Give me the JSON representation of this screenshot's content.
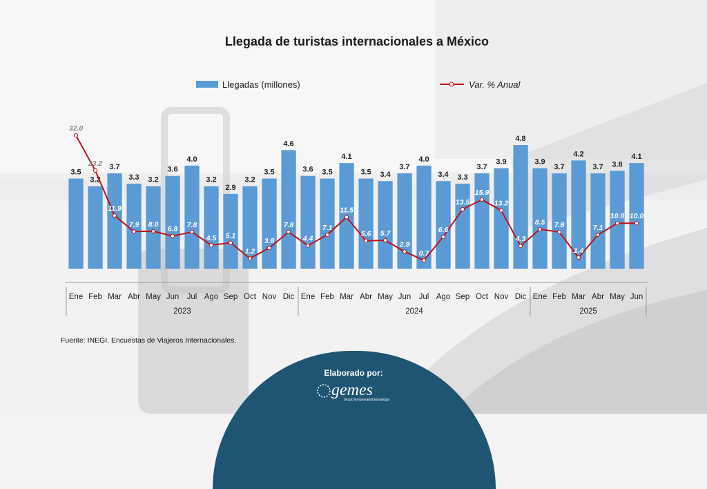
{
  "title": "Llegada de turistas internacionales a México",
  "legend": {
    "bars": "Llegadas (millones)",
    "line": "Var. % Anual"
  },
  "source": "Fuente: INEGI. Encuestas de Viajeros Internacionales.",
  "credit": {
    "label": "Elaborado por:",
    "logo_name": "gemes",
    "logo_subtitle": "Grupo Empresarial Estrategia"
  },
  "colors": {
    "bar": "#5b9bd5",
    "line": "#c0121b",
    "badge": "#1e5573"
  },
  "chart_data": {
    "type": "bar",
    "title": "Llegada de turistas internacionales a México",
    "xlabel": "",
    "ylabel": "",
    "categories": [
      "Ene",
      "Feb",
      "Mar",
      "Abr",
      "May",
      "Jun",
      "Jul",
      "Ago",
      "Sep",
      "Oct",
      "Nov",
      "Dic",
      "Ene",
      "Feb",
      "Mar",
      "Abr",
      "May",
      "Jun",
      "Jul",
      "Ago",
      "Sep",
      "Oct",
      "Nov",
      "Dic",
      "Ene",
      "Feb",
      "Mar",
      "Abr",
      "May",
      "Jun"
    ],
    "years": [
      {
        "label": "2023",
        "count": 12
      },
      {
        "label": "2024",
        "count": 12
      },
      {
        "label": "2025",
        "count": 6
      }
    ],
    "series": [
      {
        "name": "Llegadas (millones)",
        "type": "bar",
        "values": [
          3.5,
          3.2,
          3.7,
          3.3,
          3.2,
          3.6,
          4.0,
          3.2,
          2.9,
          3.2,
          3.5,
          4.6,
          3.6,
          3.5,
          4.1,
          3.5,
          3.4,
          3.7,
          4.0,
          3.4,
          3.3,
          3.7,
          3.9,
          4.8,
          3.9,
          3.7,
          4.2,
          3.7,
          3.8,
          4.1
        ]
      },
      {
        "name": "Var. % Anual",
        "type": "line",
        "values": [
          32.0,
          23.2,
          11.9,
          7.9,
          8.0,
          6.8,
          7.8,
          4.5,
          5.1,
          1.2,
          3.8,
          7.8,
          4.4,
          7.1,
          11.5,
          5.6,
          5.7,
          2.9,
          0.7,
          6.6,
          13.5,
          15.9,
          13.2,
          4.3,
          8.5,
          7.8,
          1.4,
          7.1,
          10.0,
          10.0
        ]
      }
    ],
    "grid": false,
    "legend_position": "top"
  }
}
